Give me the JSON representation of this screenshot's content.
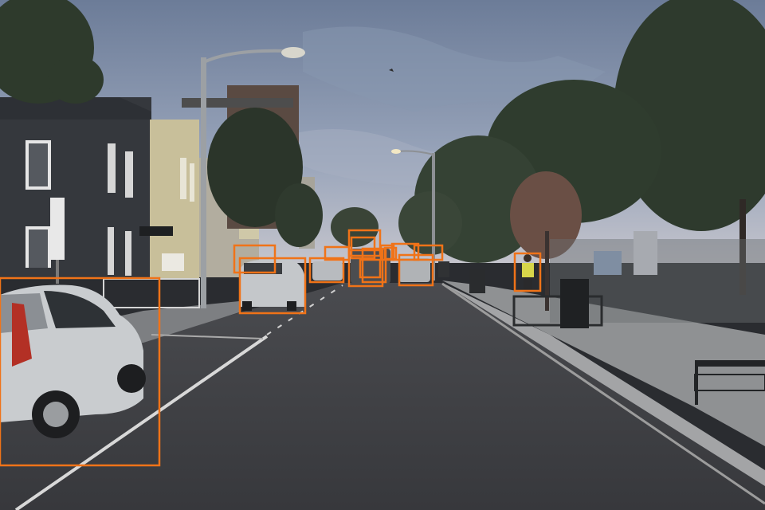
{
  "scene": {
    "description_colors": {
      "sky_top": "#6f7f9b",
      "sky_horizon": "#b7bfcf",
      "road": "#3b3c40",
      "sidewalk": "#8b8d8f",
      "foliage": "#2f3a30",
      "box_color": "#f07318"
    }
  },
  "detections": {
    "count": 16,
    "labels_visible": false
  }
}
